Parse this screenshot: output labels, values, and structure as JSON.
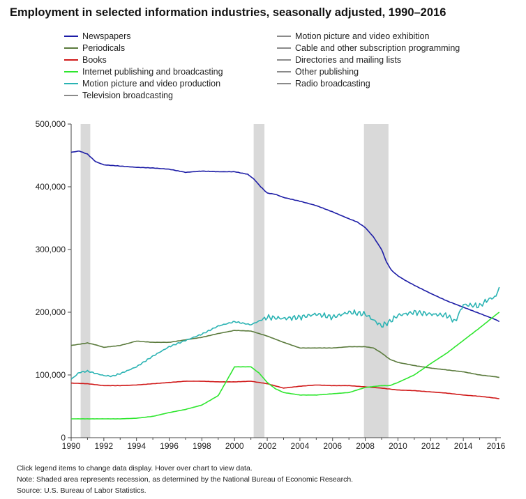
{
  "title": "Employment in selected information industries, seasonally adjusted, 1990–2016",
  "footnotes": {
    "instructions": "Click legend items to change data display. Hover over chart to view data.",
    "note": "Note: Shaded area represents recession, as determined by the National Bureau of Economic Research.",
    "source": "Source: U.S. Bureau of Labor Statistics."
  },
  "legend": [
    {
      "label": "Newspapers",
      "color": "#1c1ca6",
      "active": true
    },
    {
      "label": "Periodicals",
      "color": "#5a7a3c",
      "active": true
    },
    {
      "label": "Books",
      "color": "#d01818",
      "active": true
    },
    {
      "label": "Internet publishing and broadcasting",
      "color": "#2ee62e",
      "active": true
    },
    {
      "label": "Motion picture and video production",
      "color": "#2ab3b3",
      "active": true
    },
    {
      "label": "Television broadcasting",
      "color": "#8a8a8a",
      "active": false
    },
    {
      "label": "Motion picture and video exhibition",
      "color": "#8a8a8a",
      "active": false
    },
    {
      "label": "Cable and other subscription programming",
      "color": "#8a8a8a",
      "active": false
    },
    {
      "label": "Directories and mailing lists",
      "color": "#8a8a8a",
      "active": false
    },
    {
      "label": "Other publishing",
      "color": "#8a8a8a",
      "active": false
    },
    {
      "label": "Radio broadcasting",
      "color": "#8a8a8a",
      "active": false
    }
  ],
  "chart_data": {
    "type": "line",
    "title": "Employment in selected information industries, seasonally adjusted, 1990–2016",
    "xlabel": "",
    "ylabel": "",
    "xlim": [
      1990,
      2016.3
    ],
    "ylim": [
      0,
      500000
    ],
    "xticks": [
      1990,
      1992,
      1994,
      1996,
      1998,
      2000,
      2002,
      2004,
      2006,
      2008,
      2010,
      2012,
      2014,
      2016
    ],
    "yticks": [
      0,
      100000,
      200000,
      300000,
      400000,
      500000
    ],
    "ytick_labels": [
      "0",
      "100,000",
      "200,000",
      "300,000",
      "400,000",
      "500,000"
    ],
    "grid": false,
    "legend_position": "top",
    "recessions": [
      [
        1990.58,
        1991.17
      ],
      [
        2001.17,
        2001.83
      ],
      [
        2007.92,
        2009.42
      ]
    ],
    "series": [
      {
        "name": "Newspapers",
        "color": "#1c1ca6",
        "x": [
          1990,
          1990.5,
          1991,
          1991.5,
          1992,
          1993,
          1994,
          1995,
          1996,
          1997,
          1998,
          1999,
          2000,
          2000.8,
          2001.2,
          2001.6,
          2002,
          2002.5,
          2003,
          2004,
          2005,
          2006,
          2007,
          2007.5,
          2008,
          2008.5,
          2009,
          2009.3,
          2009.6,
          2010,
          2010.5,
          2011,
          2012,
          2013,
          2014,
          2015,
          2016,
          2016.2
        ],
        "y": [
          455000,
          457000,
          452000,
          440000,
          435000,
          433000,
          431000,
          430000,
          428000,
          423000,
          425000,
          424000,
          424000,
          420000,
          412000,
          400000,
          390000,
          388000,
          383000,
          377000,
          370000,
          360000,
          349000,
          344000,
          335000,
          320000,
          300000,
          280000,
          267000,
          258000,
          250000,
          243000,
          230000,
          218000,
          208000,
          198000,
          188000,
          185000
        ]
      },
      {
        "name": "Periodicals",
        "color": "#5a7a3c",
        "x": [
          1990,
          1990.5,
          1991,
          1991.5,
          1992,
          1993,
          1994,
          1995,
          1996,
          1997,
          1998,
          1999,
          2000,
          2001,
          2002,
          2003,
          2004,
          2005,
          2006,
          2007,
          2008,
          2008.5,
          2009,
          2009.5,
          2010,
          2011,
          2012,
          2013,
          2014,
          2015,
          2016,
          2016.2
        ],
        "y": [
          147000,
          149000,
          151000,
          148000,
          144000,
          147000,
          154000,
          152000,
          152000,
          156000,
          160000,
          166000,
          171000,
          170000,
          162000,
          152000,
          143000,
          143000,
          143000,
          145000,
          145000,
          143000,
          135000,
          125000,
          120000,
          115000,
          111000,
          108000,
          105000,
          100000,
          97000,
          96000
        ]
      },
      {
        "name": "Books",
        "color": "#d01818",
        "x": [
          1990,
          1991,
          1992,
          1993,
          1994,
          1995,
          1996,
          1997,
          1998,
          1999,
          2000,
          2001,
          2002,
          2003,
          2004,
          2005,
          2006,
          2007,
          2008,
          2009,
          2010,
          2011,
          2012,
          2013,
          2014,
          2015,
          2016,
          2016.2
        ],
        "y": [
          87000,
          86000,
          83000,
          83000,
          84000,
          86000,
          88000,
          90000,
          90000,
          89000,
          89000,
          90000,
          86000,
          79000,
          82000,
          84000,
          83000,
          83000,
          81000,
          79000,
          76000,
          75000,
          73000,
          71000,
          68000,
          66000,
          63000,
          62000
        ]
      },
      {
        "name": "Internet publishing and broadcasting",
        "color": "#2ee62e",
        "x": [
          1990,
          1991,
          1992,
          1993,
          1994,
          1995,
          1996,
          1997,
          1998,
          1999,
          1999.5,
          2000,
          2000.5,
          2001,
          2001.5,
          2002,
          2002.5,
          2003,
          2004,
          2005,
          2006,
          2007,
          2008,
          2009,
          2009.5,
          2010,
          2011,
          2012,
          2013,
          2014,
          2015,
          2016,
          2016.2
        ],
        "y": [
          30000,
          30000,
          30000,
          30000,
          31000,
          34000,
          40000,
          45000,
          52000,
          67000,
          90000,
          113000,
          113000,
          113000,
          103000,
          88000,
          78000,
          72000,
          68000,
          68000,
          70000,
          72000,
          80000,
          83000,
          83000,
          88000,
          100000,
          118000,
          135000,
          155000,
          175000,
          196000,
          200000
        ]
      },
      {
        "name": "Motion picture and video production",
        "color": "#2ab3b3",
        "x": [
          1990,
          1990.5,
          1991,
          1992,
          1992.5,
          1993,
          1994,
          1995,
          1996,
          1997,
          1998,
          1999,
          2000,
          2001,
          2002,
          2003,
          2004,
          2005,
          2006,
          2007,
          2008,
          2009,
          2009.5,
          2010,
          2011,
          2012,
          2013,
          2013.5,
          2014,
          2015,
          2015.5,
          2016,
          2016.2
        ],
        "y": [
          93000,
          104000,
          106000,
          99000,
          98000,
          102000,
          113000,
          130000,
          145000,
          155000,
          165000,
          178000,
          185000,
          180000,
          192000,
          190000,
          192000,
          197000,
          192000,
          200000,
          197000,
          178000,
          185000,
          195000,
          200000,
          197000,
          195000,
          185000,
          212000,
          210000,
          220000,
          225000,
          240000
        ]
      }
    ]
  }
}
